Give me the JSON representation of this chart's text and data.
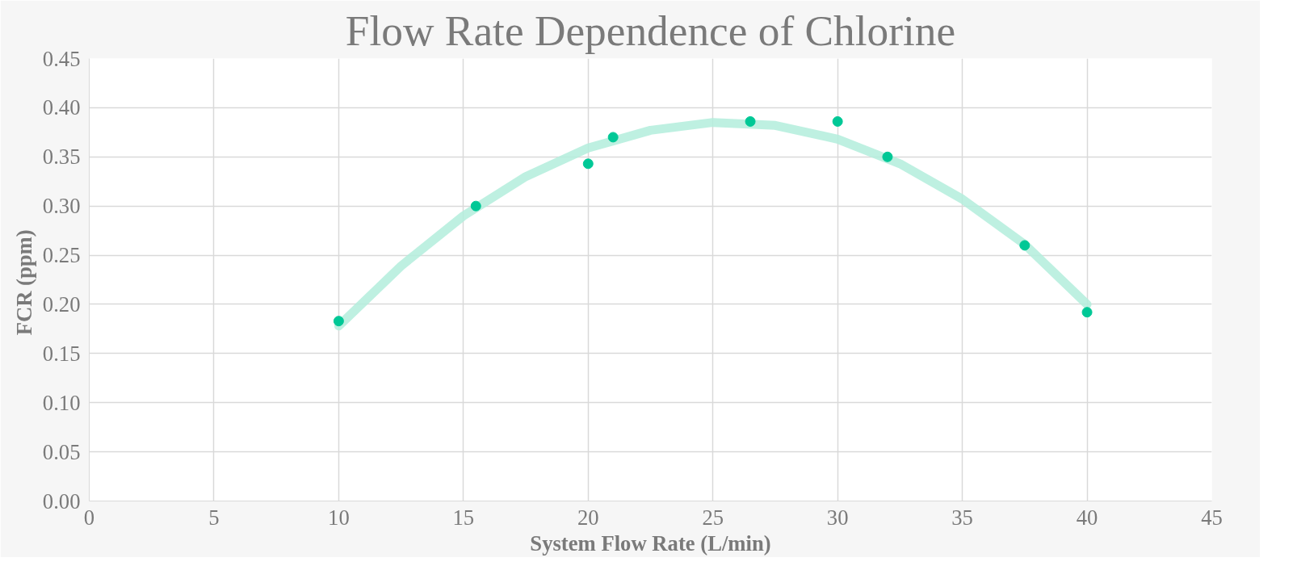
{
  "chart_data": {
    "type": "scatter",
    "title": "Flow Rate Dependence of Chlorine",
    "xlabel": "System Flow Rate (L/min)",
    "ylabel": "FCR  (ppm)",
    "xlim": [
      0,
      45
    ],
    "xticks": [
      0,
      5,
      10,
      15,
      20,
      25,
      30,
      35,
      40,
      45
    ],
    "ylim": [
      0,
      0.45
    ],
    "yticks": [
      {
        "value": 0,
        "label": "0.00"
      },
      {
        "value": 0.05,
        "label": "0.05"
      },
      {
        "value": 0.1,
        "label": "0.10"
      },
      {
        "value": 0.15,
        "label": "0.15"
      },
      {
        "value": 0.2,
        "label": "0.20"
      },
      {
        "value": 0.25,
        "label": "0.25"
      },
      {
        "value": 0.3,
        "label": "0.30"
      },
      {
        "value": 0.35,
        "label": "0.35"
      },
      {
        "value": 0.4,
        "label": "0.40"
      },
      {
        "value": 0.45,
        "label": "0.45"
      }
    ],
    "grid": true,
    "marker": "circle",
    "series": [
      {
        "type": "line",
        "marker": "none",
        "color": "#b3eddc",
        "x": [
          10,
          12.5,
          15,
          17.5,
          20,
          22.5,
          25,
          27.5,
          30,
          32.5,
          35,
          37.5,
          40
        ],
        "values": [
          0.178,
          0.239,
          0.29,
          0.33,
          0.359,
          0.377,
          0.385,
          0.382,
          0.368,
          0.343,
          0.307,
          0.261,
          0.2
        ]
      },
      {
        "color": "#00c896",
        "x": [
          10,
          15.5,
          20,
          21,
          26.5,
          30,
          32,
          37.5,
          40
        ],
        "values": [
          0.183,
          0.3,
          0.343,
          0.37,
          0.386,
          0.386,
          0.35,
          0.26,
          0.192
        ]
      }
    ]
  }
}
